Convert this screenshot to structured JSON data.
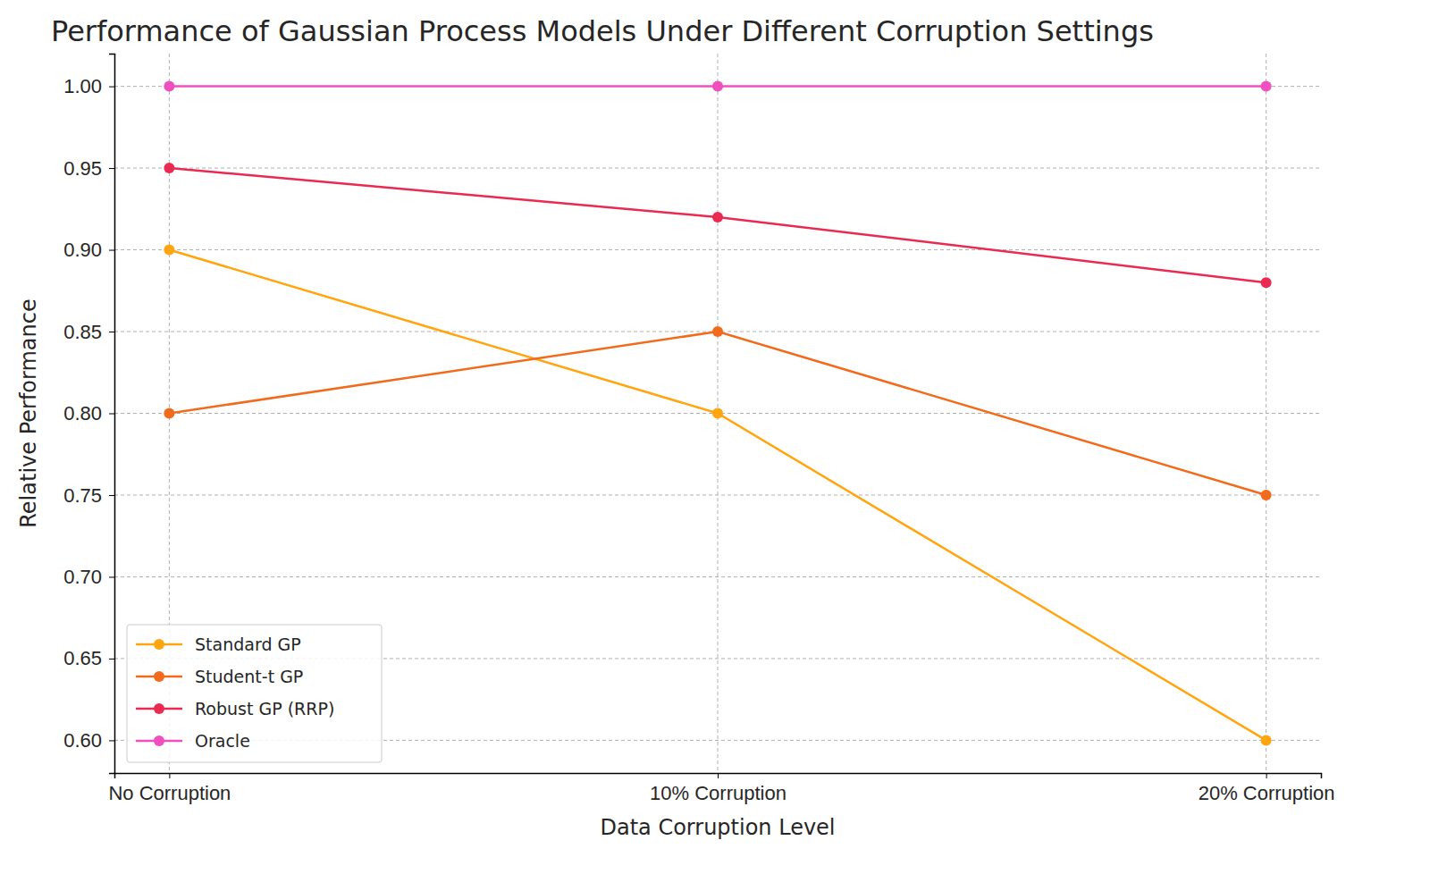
{
  "chart_data": {
    "type": "line",
    "title": "Performance of Gaussian Process Models Under Different Corruption Settings",
    "x_label": "Data Corruption Level",
    "y_label": "Relative Performance",
    "categories": [
      "No Corruption",
      "10% Corruption",
      "20% Corruption"
    ],
    "series": [
      {
        "name": "Standard GP",
        "color": "#ffa50f",
        "marker": "circle",
        "values": [
          0.9,
          0.8,
          0.6
        ]
      },
      {
        "name": "Student-t GP",
        "color": "#f26b1d",
        "marker": "circle",
        "values": [
          0.8,
          0.85,
          0.75
        ]
      },
      {
        "name": "Robust GP (RRP)",
        "color": "#ea2a50",
        "marker": "circle",
        "values": [
          0.95,
          0.92,
          0.88
        ]
      },
      {
        "name": "Oracle",
        "color": "#f04fbf",
        "marker": "circle",
        "values": [
          1,
          1,
          1
        ]
      }
    ],
    "ylim": [
      0.58,
      1.02
    ],
    "yticks": [
      {
        "value": 0.6,
        "label": "0.60"
      },
      0.65,
      {
        "value": 0.7,
        "label": "0.70"
      },
      0.75,
      {
        "value": 0.8,
        "label": "0.80"
      },
      0.85,
      {
        "value": 0.9,
        "label": "0.90"
      },
      0.95,
      {
        "value": 1,
        "label": "1.00"
      }
    ],
    "grid": true,
    "legend": "lower left"
  }
}
